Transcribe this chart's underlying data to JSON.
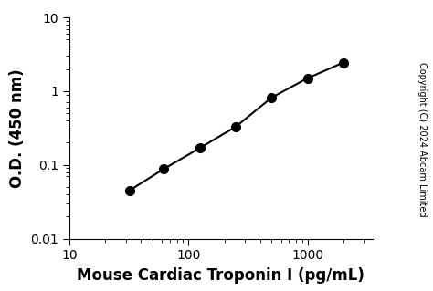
{
  "x": [
    32,
    62,
    125,
    250,
    500,
    1000,
    2000
  ],
  "y": [
    0.045,
    0.088,
    0.17,
    0.33,
    0.82,
    1.5,
    2.45
  ],
  "xlabel": "Mouse Cardiac Troponin I (pg/mL)",
  "ylabel": "O.D. (450 nm)",
  "xlim": [
    10,
    3500
  ],
  "ylim": [
    0.01,
    10
  ],
  "color": "#000000",
  "marker": "o",
  "markersize": 7,
  "linewidth": 1.5,
  "copyright_text": "Copyright (C) 2024 Abcam Limited",
  "background_color": "#ffffff",
  "label_fontsize": 12,
  "tick_fontsize": 10,
  "copyright_fontsize": 7
}
